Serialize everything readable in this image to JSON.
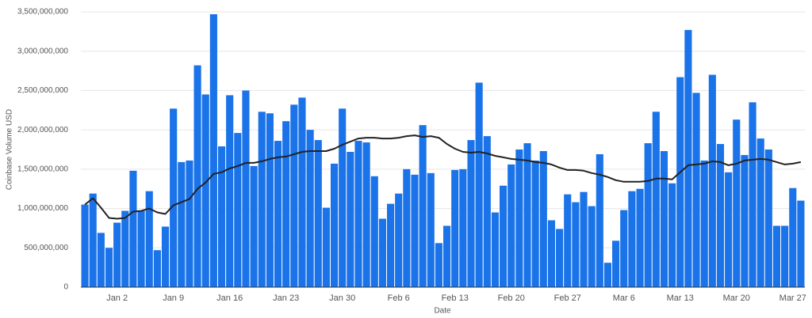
{
  "chart_data": {
    "type": "bar",
    "y_label": "Coinbase Volume USD",
    "x_label": "Date",
    "categories": [
      null,
      null,
      null,
      null,
      "Jan 2",
      null,
      null,
      null,
      null,
      null,
      null,
      "Jan 9",
      null,
      null,
      null,
      null,
      null,
      null,
      "Jan 16",
      null,
      null,
      null,
      null,
      null,
      null,
      "Jan 23",
      null,
      null,
      null,
      null,
      null,
      null,
      "Jan 30",
      null,
      null,
      null,
      null,
      null,
      null,
      "Feb 6",
      null,
      null,
      null,
      null,
      null,
      null,
      "Feb 13",
      null,
      null,
      null,
      null,
      null,
      null,
      "Feb 20",
      null,
      null,
      null,
      null,
      null,
      null,
      "Feb 27",
      null,
      null,
      null,
      null,
      null,
      null,
      "Mar 6",
      null,
      null,
      null,
      null,
      null,
      null,
      "Mar 13",
      null,
      null,
      null,
      null,
      null,
      null,
      "Mar 20",
      null,
      null,
      null,
      null,
      null,
      null,
      "Mar 27",
      null
    ],
    "series": [
      {
        "type": "bar",
        "color": "#1a73e8",
        "values": [
          1050000000,
          1190000000,
          690000000,
          500000000,
          820000000,
          970000000,
          1480000000,
          970000000,
          1220000000,
          470000000,
          770000000,
          2270000000,
          1590000000,
          1610000000,
          2820000000,
          2450000000,
          3470000000,
          1790000000,
          2440000000,
          1960000000,
          2500000000,
          1540000000,
          2230000000,
          2210000000,
          1860000000,
          2110000000,
          2320000000,
          2410000000,
          2000000000,
          1870000000,
          1010000000,
          1570000000,
          2270000000,
          1720000000,
          1860000000,
          1840000000,
          1410000000,
          870000000,
          1060000000,
          1190000000,
          1500000000,
          1430000000,
          2060000000,
          1450000000,
          560000000,
          780000000,
          1490000000,
          1500000000,
          1870000000,
          2600000000,
          1920000000,
          950000000,
          1290000000,
          1560000000,
          1750000000,
          1830000000,
          1610000000,
          1730000000,
          850000000,
          740000000,
          1180000000,
          1080000000,
          1210000000,
          1030000000,
          1690000000,
          310000000,
          590000000,
          980000000,
          1220000000,
          1250000000,
          1830000000,
          2230000000,
          1730000000,
          1320000000,
          2670000000,
          3270000000,
          2470000000,
          1610000000,
          2700000000,
          1820000000,
          1460000000,
          2130000000,
          1680000000,
          2350000000,
          1890000000,
          1750000000,
          780000000,
          780000000,
          1260000000,
          1100000000
        ]
      },
      {
        "type": "line",
        "color": "#222222",
        "values": [
          1050000000,
          1130000000,
          1010000000,
          880000000,
          870000000,
          880000000,
          960000000,
          970000000,
          1000000000,
          950000000,
          930000000,
          1040000000,
          1080000000,
          1120000000,
          1250000000,
          1330000000,
          1440000000,
          1460000000,
          1510000000,
          1540000000,
          1580000000,
          1580000000,
          1600000000,
          1630000000,
          1650000000,
          1660000000,
          1690000000,
          1720000000,
          1730000000,
          1730000000,
          1730000000,
          1760000000,
          1810000000,
          1850000000,
          1890000000,
          1900000000,
          1900000000,
          1890000000,
          1890000000,
          1900000000,
          1920000000,
          1930000000,
          1910000000,
          1920000000,
          1900000000,
          1820000000,
          1760000000,
          1720000000,
          1710000000,
          1720000000,
          1700000000,
          1670000000,
          1650000000,
          1630000000,
          1620000000,
          1610000000,
          1590000000,
          1580000000,
          1560000000,
          1520000000,
          1490000000,
          1490000000,
          1480000000,
          1450000000,
          1430000000,
          1400000000,
          1360000000,
          1340000000,
          1340000000,
          1340000000,
          1350000000,
          1380000000,
          1380000000,
          1370000000,
          1460000000,
          1550000000,
          1560000000,
          1570000000,
          1600000000,
          1590000000,
          1550000000,
          1570000000,
          1610000000,
          1620000000,
          1630000000,
          1620000000,
          1590000000,
          1560000000,
          1570000000,
          1590000000
        ]
      }
    ],
    "ylim": [
      0,
      3500000000
    ],
    "yticks": [
      0,
      {
        "value": 500000000,
        "label": "500,000,000"
      },
      {
        "value": 1000000000,
        "label": "1,000,000,000"
      },
      {
        "value": 1500000000,
        "label": "1,500,000,000"
      },
      {
        "value": 2000000000,
        "label": "2,000,000,000"
      },
      {
        "value": 2500000000,
        "label": "2,500,000,000"
      },
      {
        "value": 3000000000,
        "label": "3,000,000,000"
      },
      {
        "value": 3500000000,
        "label": "3,500,000,000"
      }
    ],
    "grid": true
  }
}
